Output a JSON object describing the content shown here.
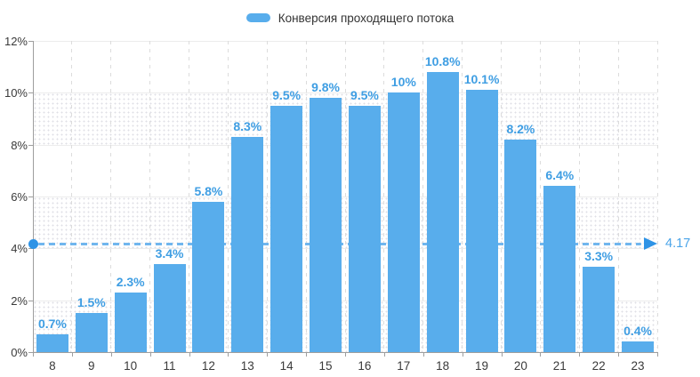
{
  "legend": {
    "label": "Конверсия проходящего потока"
  },
  "chart_data": {
    "type": "bar",
    "title": "",
    "legend_label": "Конверсия проходящего потока",
    "legend_position": "top-center",
    "categories": [
      "8",
      "9",
      "10",
      "11",
      "12",
      "13",
      "14",
      "15",
      "16",
      "17",
      "18",
      "19",
      "20",
      "21",
      "22",
      "23"
    ],
    "values": [
      0.7,
      1.5,
      2.3,
      3.4,
      5.8,
      8.3,
      9.5,
      9.8,
      9.5,
      10,
      10.8,
      10.1,
      8.2,
      6.4,
      3.3,
      0.4
    ],
    "value_labels": [
      "0.7%",
      "1.5%",
      "2.3%",
      "3.4%",
      "5.8%",
      "8.3%",
      "9.5%",
      "9.8%",
      "9.5%",
      "10%",
      "10.8%",
      "10.1%",
      "8.2%",
      "6.4%",
      "3.3%",
      "0.4%"
    ],
    "xlabel": "",
    "ylabel": "",
    "ylim": [
      0,
      12
    ],
    "ytick_step": 2,
    "ytick_labels": [
      "0%",
      "2%",
      "4%",
      "6%",
      "8%",
      "10%",
      "12%"
    ],
    "grid": {
      "horizontal": "solid",
      "vertical": "dashed",
      "alternating_dotted_bands": true
    },
    "average_line": {
      "value": 4.17,
      "label": "4.17"
    }
  },
  "colors": {
    "bar": "#58ADEC",
    "value_label": "#3F9EE3",
    "axis_line": "#9E9E9E",
    "axis_text": "#3A3A3A",
    "grid_line": "#ECECEC",
    "grid_dash": "#DCDCDC",
    "avg_dash": "#70B6EE",
    "avg_accent": "#2E93E6",
    "avg_text": "#4AA4E9",
    "legend_text": "#333333"
  }
}
